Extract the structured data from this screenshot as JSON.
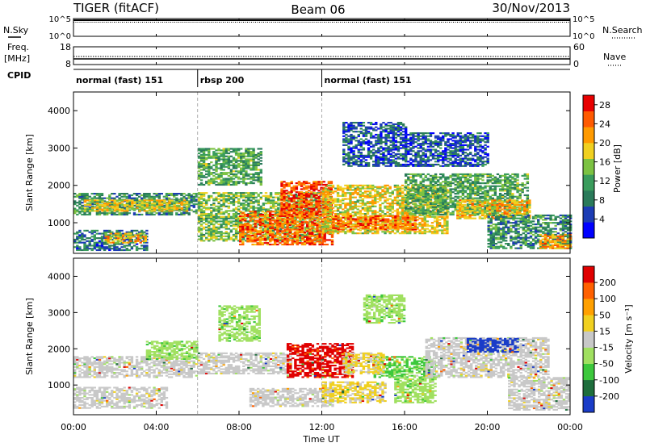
{
  "header": {
    "radar": "TIGER (fitACF)",
    "beam": "Beam 06",
    "date": "30/Nov/2013"
  },
  "nsky_panel": {
    "label": "N.Sky",
    "left_ticks": [
      "10^5",
      "10^0"
    ],
    "right_ticks": [
      "10^5",
      "10^0"
    ],
    "right_label": "N.Search"
  },
  "freq_panel": {
    "label_line1": "Freq.",
    "label_line2": "[MHz]",
    "left_ticks": [
      "18",
      "8"
    ],
    "right_ticks": [
      "60",
      "0"
    ],
    "right_label": "Nave"
  },
  "cpid_panel": {
    "label": "CPID",
    "segments": [
      {
        "text": "normal (fast) 151",
        "start_hour": 0,
        "end_hour": 6
      },
      {
        "text": "rbsp 200",
        "start_hour": 6,
        "end_hour": 12
      },
      {
        "text": "normal (fast) 151",
        "start_hour": 12,
        "end_hour": 24
      }
    ]
  },
  "time_axis": {
    "label": "Time UT",
    "ticks": [
      "00:00",
      "04:00",
      "08:00",
      "12:00",
      "16:00",
      "20:00",
      "00:00"
    ]
  },
  "chart_data": [
    {
      "type": "heatmap",
      "panel": "power",
      "ylabel": "Slant Range [km]",
      "yticks": [
        1000,
        2000,
        3000,
        4000
      ],
      "ylim": [
        180,
        4500
      ],
      "xlim_hours": [
        0,
        24
      ],
      "colorbar": {
        "label": "Power [dB]",
        "ticks": [
          4,
          8,
          12,
          16,
          20,
          24,
          28
        ],
        "range": [
          0,
          30
        ],
        "colors": [
          "#0000ff",
          "#1c3cb4",
          "#2a7a5a",
          "#3a9c5c",
          "#7cc242",
          "#f0d020",
          "#ff9a00",
          "#ff5a00",
          "#e80000"
        ]
      },
      "regions": [
        {
          "t0": 0.0,
          "t1": 6.0,
          "r0": 1200,
          "r1": 1800,
          "level": 10
        },
        {
          "t0": 0.5,
          "t1": 5.5,
          "r0": 1300,
          "r1": 1600,
          "level": 18
        },
        {
          "t0": 0.0,
          "t1": 3.5,
          "r0": 250,
          "r1": 800,
          "level": 8
        },
        {
          "t0": 1.5,
          "t1": 3.5,
          "r0": 450,
          "r1": 700,
          "level": 20
        },
        {
          "t0": 6.0,
          "t1": 12.0,
          "r0": 500,
          "r1": 1800,
          "level": 14
        },
        {
          "t0": 8.0,
          "t1": 12.5,
          "r0": 400,
          "r1": 1300,
          "level": 24
        },
        {
          "t0": 10.0,
          "t1": 12.5,
          "r0": 1200,
          "r1": 2100,
          "level": 26
        },
        {
          "t0": 12.0,
          "t1": 18.0,
          "r0": 700,
          "r1": 2000,
          "level": 18
        },
        {
          "t0": 12.5,
          "t1": 16.5,
          "r0": 800,
          "r1": 1200,
          "level": 24
        },
        {
          "t0": 16.0,
          "t1": 22.0,
          "r0": 1200,
          "r1": 2300,
          "level": 12
        },
        {
          "t0": 18.5,
          "t1": 22.0,
          "r0": 1100,
          "r1": 1600,
          "level": 20
        },
        {
          "t0": 20.0,
          "t1": 24.0,
          "r0": 300,
          "r1": 1200,
          "level": 10
        },
        {
          "t0": 22.5,
          "t1": 24.0,
          "r0": 300,
          "r1": 700,
          "level": 22
        },
        {
          "t0": 6.0,
          "t1": 9.0,
          "r0": 2000,
          "r1": 3000,
          "level": 12
        },
        {
          "t0": 13.0,
          "t1": 16.0,
          "r0": 2500,
          "r1": 3700,
          "level": 6
        },
        {
          "t0": 16.0,
          "t1": 20.0,
          "r0": 2500,
          "r1": 3400,
          "level": 6
        }
      ]
    },
    {
      "type": "heatmap",
      "panel": "velocity",
      "ylabel": "Slant Range [km]",
      "yticks": [
        1000,
        2000,
        3000,
        4000
      ],
      "ylim": [
        180,
        4500
      ],
      "xlim_hours": [
        0,
        24
      ],
      "colorbar": {
        "label": "Velocity [m s⁻¹]",
        "ticks": [
          200,
          100,
          50,
          15,
          -15,
          -50,
          -100,
          -200
        ],
        "range": [
          -250,
          250
        ],
        "colors": [
          "#1a3cc8",
          "#1e6e3c",
          "#3cc83c",
          "#a0e060",
          "#c8c8c8",
          "#f0d020",
          "#ffa000",
          "#ff6000",
          "#e00000"
        ]
      },
      "regions": [
        {
          "t0": 0.0,
          "t1": 6.0,
          "r0": 1200,
          "r1": 1800,
          "level": 0
        },
        {
          "t0": 0.0,
          "t1": 4.5,
          "r0": 350,
          "r1": 950,
          "level": 0
        },
        {
          "t0": 6.0,
          "t1": 10.5,
          "r0": 1300,
          "r1": 1900,
          "level": 0
        },
        {
          "t0": 8.5,
          "t1": 12.5,
          "r0": 400,
          "r1": 900,
          "level": 0
        },
        {
          "t0": 10.3,
          "t1": 13.5,
          "r0": 1200,
          "r1": 2150,
          "level": 220
        },
        {
          "t0": 12.0,
          "t1": 15.0,
          "r0": 500,
          "r1": 1100,
          "level": 40
        },
        {
          "t0": 14.5,
          "t1": 17.5,
          "r0": 1200,
          "r1": 1800,
          "level": -90
        },
        {
          "t0": 15.5,
          "t1": 17.5,
          "r0": 500,
          "r1": 1200,
          "level": -60
        },
        {
          "t0": 13.0,
          "t1": 15.0,
          "r0": 1300,
          "r1": 1900,
          "level": 40
        },
        {
          "t0": 17.0,
          "t1": 23.0,
          "r0": 1200,
          "r1": 2300,
          "level": 0
        },
        {
          "t0": 19.0,
          "t1": 21.5,
          "r0": 1900,
          "r1": 2300,
          "level": -230
        },
        {
          "t0": 21.0,
          "t1": 24.0,
          "r0": 300,
          "r1": 1200,
          "level": 0
        },
        {
          "t0": 7.0,
          "t1": 9.0,
          "r0": 2200,
          "r1": 3200,
          "level": -60
        },
        {
          "t0": 3.5,
          "t1": 6.0,
          "r0": 1700,
          "r1": 2200,
          "level": -60
        },
        {
          "t0": 14.0,
          "t1": 16.0,
          "r0": 2700,
          "r1": 3500,
          "level": -60
        }
      ]
    }
  ]
}
